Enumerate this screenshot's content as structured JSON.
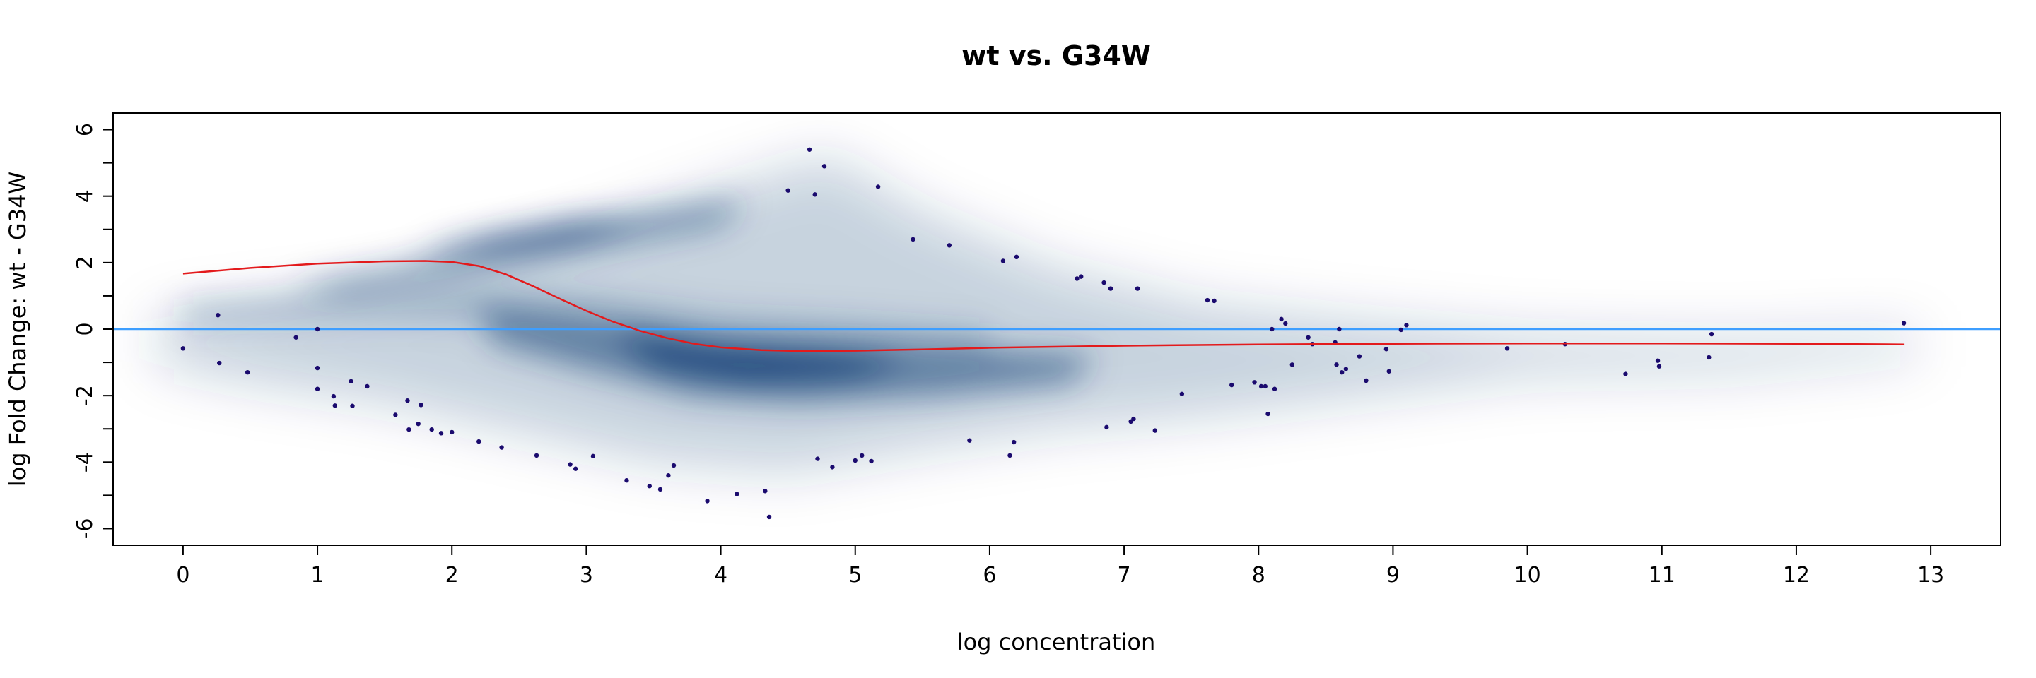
{
  "chart_data": {
    "type": "scatter",
    "title": "wt vs. G34W",
    "xlabel": "log concentration",
    "ylabel": "log Fold Change: wt - G34W",
    "xlim": [
      -0.52,
      13.52
    ],
    "ylim": [
      -6.5,
      6.5
    ],
    "x_ticks": [
      0,
      1,
      2,
      3,
      4,
      5,
      6,
      7,
      8,
      9,
      10,
      11,
      12,
      13
    ],
    "y_ticks": [
      -6,
      -4,
      -2,
      0,
      2,
      4,
      6
    ],
    "y_minor_ticks": [
      -5,
      -3,
      -1,
      1,
      3,
      5
    ],
    "reference_line": {
      "y": 0,
      "color": "#3d9eff"
    },
    "density_color": "#08306b",
    "point_color": "#1a0a6e",
    "fit_color": "#e31a1c",
    "fit_line": {
      "x": [
        0,
        0.5,
        1,
        1.5,
        1.8,
        2.0,
        2.2,
        2.4,
        2.6,
        2.8,
        3.0,
        3.2,
        3.4,
        3.6,
        3.8,
        4.0,
        4.3,
        4.6,
        5.0,
        5.5,
        6,
        7,
        8,
        9,
        10,
        11,
        12,
        12.8
      ],
      "y": [
        1.67,
        1.84,
        1.97,
        2.04,
        2.05,
        2.02,
        1.9,
        1.65,
        1.3,
        0.92,
        0.55,
        0.22,
        -0.05,
        -0.27,
        -0.44,
        -0.55,
        -0.63,
        -0.66,
        -0.65,
        -0.61,
        -0.56,
        -0.5,
        -0.46,
        -0.44,
        -0.43,
        -0.43,
        -0.44,
        -0.46
      ]
    },
    "points": [
      [
        0.0,
        -0.58
      ],
      [
        0.26,
        0.42
      ],
      [
        0.27,
        -1.02
      ],
      [
        0.48,
        -1.3
      ],
      [
        0.84,
        -0.25
      ],
      [
        1.0,
        0.0
      ],
      [
        1.0,
        -1.17
      ],
      [
        1.0,
        -1.8
      ],
      [
        1.12,
        -2.02
      ],
      [
        1.13,
        -2.3
      ],
      [
        1.25,
        -1.57
      ],
      [
        1.26,
        -2.31
      ],
      [
        1.37,
        -1.72
      ],
      [
        1.58,
        -2.58
      ],
      [
        1.67,
        -2.15
      ],
      [
        1.68,
        -3.02
      ],
      [
        1.75,
        -2.85
      ],
      [
        1.77,
        -2.28
      ],
      [
        1.85,
        -3.02
      ],
      [
        1.92,
        -3.13
      ],
      [
        2.0,
        -3.1
      ],
      [
        2.2,
        -3.38
      ],
      [
        2.37,
        -3.56
      ],
      [
        2.63,
        -3.8
      ],
      [
        2.88,
        -4.07
      ],
      [
        2.92,
        -4.2
      ],
      [
        3.05,
        -3.82
      ],
      [
        3.3,
        -4.55
      ],
      [
        3.47,
        -4.72
      ],
      [
        3.55,
        -4.82
      ],
      [
        3.61,
        -4.4
      ],
      [
        3.65,
        -4.1
      ],
      [
        3.9,
        -5.17
      ],
      [
        4.12,
        -4.96
      ],
      [
        4.33,
        -4.87
      ],
      [
        4.36,
        -5.65
      ],
      [
        4.5,
        4.17
      ],
      [
        4.66,
        5.4
      ],
      [
        4.7,
        4.05
      ],
      [
        4.72,
        -3.9
      ],
      [
        4.77,
        4.9
      ],
      [
        4.83,
        -4.15
      ],
      [
        5.0,
        -3.95
      ],
      [
        5.05,
        -3.8
      ],
      [
        5.12,
        -3.97
      ],
      [
        5.17,
        4.28
      ],
      [
        5.43,
        2.7
      ],
      [
        5.7,
        2.52
      ],
      [
        5.85,
        -3.35
      ],
      [
        6.1,
        2.05
      ],
      [
        6.15,
        -3.8
      ],
      [
        6.18,
        -3.4
      ],
      [
        6.2,
        2.17
      ],
      [
        6.65,
        1.52
      ],
      [
        6.68,
        1.58
      ],
      [
        6.85,
        1.4
      ],
      [
        6.87,
        -2.95
      ],
      [
        6.9,
        1.22
      ],
      [
        7.05,
        -2.78
      ],
      [
        7.07,
        -2.7
      ],
      [
        7.1,
        1.22
      ],
      [
        7.23,
        -3.05
      ],
      [
        7.43,
        -1.95
      ],
      [
        7.62,
        0.87
      ],
      [
        7.67,
        0.85
      ],
      [
        7.8,
        -1.68
      ],
      [
        7.97,
        -1.6
      ],
      [
        8.02,
        -1.72
      ],
      [
        8.05,
        -1.72
      ],
      [
        8.07,
        -2.55
      ],
      [
        8.1,
        0.0
      ],
      [
        8.12,
        -1.8
      ],
      [
        8.17,
        0.3
      ],
      [
        8.2,
        0.17
      ],
      [
        8.25,
        -1.07
      ],
      [
        8.37,
        -0.25
      ],
      [
        8.4,
        -0.45
      ],
      [
        8.57,
        -0.4
      ],
      [
        8.58,
        -1.07
      ],
      [
        8.6,
        0.0
      ],
      [
        8.62,
        -1.3
      ],
      [
        8.65,
        -1.2
      ],
      [
        8.75,
        -0.82
      ],
      [
        8.8,
        -1.55
      ],
      [
        8.95,
        -0.6
      ],
      [
        8.97,
        -1.27
      ],
      [
        9.06,
        -0.02
      ],
      [
        9.1,
        0.12
      ],
      [
        9.85,
        -0.58
      ],
      [
        10.28,
        -0.45
      ],
      [
        10.73,
        -1.35
      ],
      [
        10.97,
        -0.95
      ],
      [
        10.98,
        -1.12
      ],
      [
        11.35,
        -0.85
      ],
      [
        11.37,
        -0.15
      ],
      [
        12.8,
        0.18
      ]
    ]
  }
}
